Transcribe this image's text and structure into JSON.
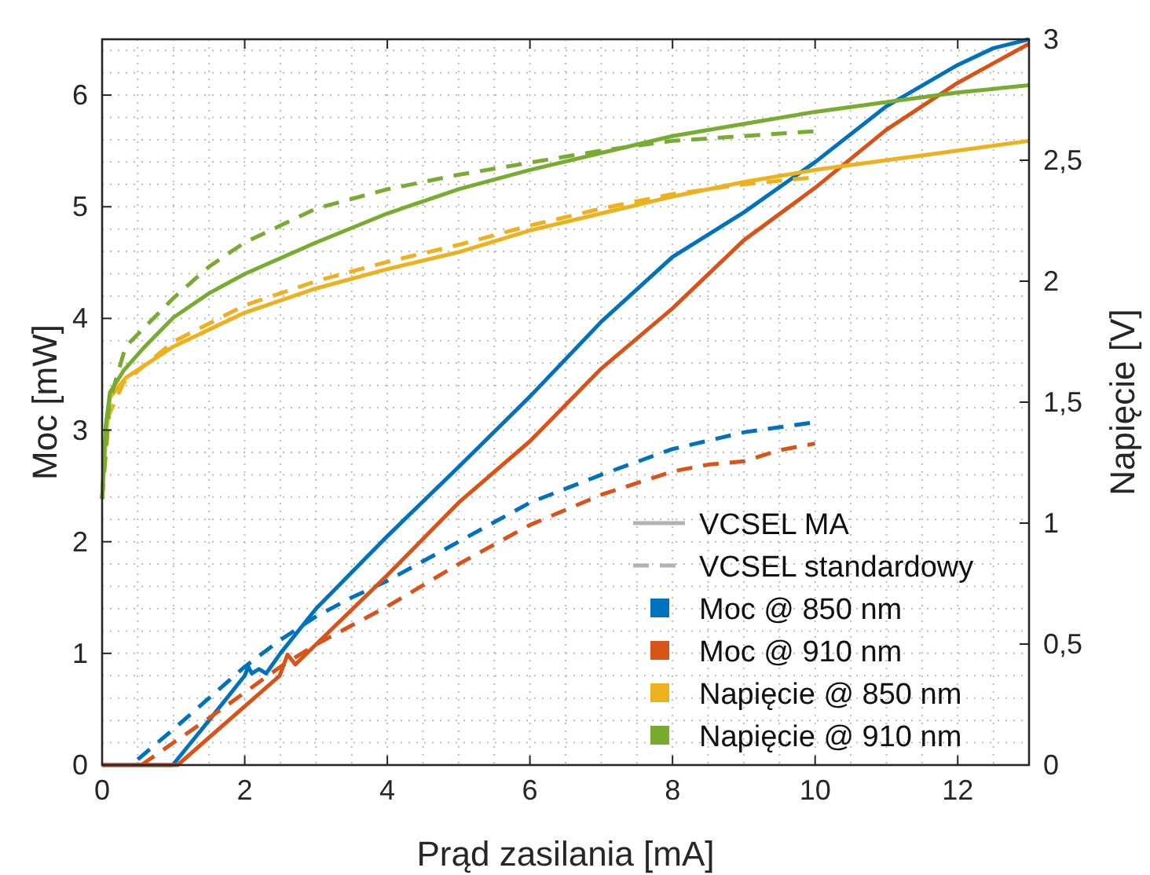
{
  "chart_data": {
    "type": "line",
    "xlabel": "Prąd zasilania [mA]",
    "ylabel": "Moc [mW]",
    "y2label": "Napięcie [V]",
    "xlim": [
      0,
      13
    ],
    "xticks": [
      0,
      2,
      4,
      6,
      8,
      10,
      12
    ],
    "ylim": [
      0,
      6.5
    ],
    "yticks": [
      0,
      1,
      2,
      3,
      4,
      5,
      6
    ],
    "y2lim": [
      0,
      3
    ],
    "y2ticks": [
      0,
      {
        "value": 0.5,
        "label": "0,5"
      },
      1,
      {
        "value": 1.5,
        "label": "1,5"
      },
      2,
      {
        "value": 2.5,
        "label": "2,5"
      },
      3
    ],
    "grid": true,
    "legend": "bottom right",
    "annotations": [
      "VCSEL MA",
      "VCSEL standardowy"
    ],
    "series": [
      {
        "name": "Moc @ 850 nm",
        "color": "#0072bd",
        "line_style": "solid",
        "x": [
          0,
          0.99,
          1.5,
          2.0,
          2.05,
          2.1,
          2.2,
          2.3,
          2.5,
          3,
          4,
          5,
          6,
          7,
          8,
          9,
          10,
          11,
          12,
          12.5,
          13
        ],
        "values": [
          0,
          0,
          0.4,
          0.8,
          0.88,
          0.82,
          0.86,
          0.82,
          1.0,
          1.4,
          2.05,
          2.67,
          3.3,
          3.97,
          4.55,
          4.95,
          5.4,
          5.9,
          6.27,
          6.42,
          6.5
        ]
      },
      {
        "color": "#0072bd",
        "line_style": "dashed",
        "x": [
          0.5,
          1,
          1.5,
          2,
          2.5,
          3,
          3.5,
          4,
          5,
          6,
          7,
          8,
          9,
          10
        ],
        "values": [
          0.05,
          0.32,
          0.6,
          0.88,
          1.12,
          1.33,
          1.5,
          1.65,
          2.0,
          2.35,
          2.6,
          2.83,
          2.98,
          3.07
        ]
      },
      {
        "name": "Moc @ 910 nm",
        "color": "#d95319",
        "line_style": "solid",
        "x": [
          0,
          1.06,
          2.49,
          2.6,
          2.71,
          4,
          5,
          6,
          7,
          8,
          9,
          10,
          11,
          12,
          13
        ],
        "values": [
          0,
          0,
          0.8,
          0.99,
          0.9,
          1.7,
          2.35,
          2.9,
          3.55,
          4.09,
          4.7,
          5.17,
          5.69,
          6.11,
          6.46
        ]
      },
      {
        "color": "#d95319",
        "line_style": "dashed",
        "x": [
          0.55,
          1,
          1.5,
          2,
          2.5,
          3,
          3.5,
          4,
          5,
          6,
          7,
          8,
          8.5,
          9,
          9.5,
          10
        ],
        "values": [
          0,
          0.2,
          0.42,
          0.65,
          0.88,
          1.08,
          1.25,
          1.42,
          1.8,
          2.15,
          2.42,
          2.63,
          2.69,
          2.72,
          2.82,
          2.88
        ]
      },
      {
        "name": "Napięcie @ 850 nm",
        "color": "#edb120",
        "line_style": "solid",
        "axis": "y2",
        "x": [
          0,
          0.05,
          0.11,
          0.33,
          1,
          2,
          3,
          4,
          5,
          6,
          7,
          8,
          9,
          10,
          11,
          12,
          13
        ],
        "values": [
          1.1,
          1.35,
          1.52,
          1.6,
          1.73,
          1.87,
          1.97,
          2.05,
          2.12,
          2.21,
          2.28,
          2.35,
          2.41,
          2.46,
          2.5,
          2.54,
          2.58
        ]
      },
      {
        "color": "#edb120",
        "line_style": "dashed",
        "axis": "y2",
        "x": [
          0,
          0.1,
          0.3,
          1,
          2,
          3,
          4,
          5,
          6,
          7,
          8,
          9,
          10
        ],
        "values": [
          1.1,
          1.45,
          1.58,
          1.75,
          1.9,
          2.0,
          2.08,
          2.15,
          2.23,
          2.3,
          2.36,
          2.4,
          2.43
        ]
      },
      {
        "name": "Napięcie @ 910 nm",
        "color": "#77ac30",
        "line_style": "solid",
        "axis": "y2",
        "x": [
          0,
          0.05,
          0.11,
          0.3,
          0.6,
          1,
          1.5,
          2,
          3,
          4,
          5,
          6,
          7,
          8,
          9,
          10,
          11,
          12,
          13
        ],
        "values": [
          1.1,
          1.4,
          1.54,
          1.63,
          1.73,
          1.85,
          1.95,
          2.03,
          2.16,
          2.28,
          2.38,
          2.46,
          2.53,
          2.6,
          2.65,
          2.7,
          2.74,
          2.78,
          2.81
        ]
      },
      {
        "color": "#77ac30",
        "line_style": "dashed",
        "axis": "y2",
        "x": [
          0,
          0.1,
          0.33,
          1,
          1.5,
          2,
          3,
          4,
          5,
          6,
          7,
          8,
          9,
          10
        ],
        "values": [
          1.1,
          1.5,
          1.73,
          1.93,
          2.06,
          2.16,
          2.3,
          2.38,
          2.44,
          2.49,
          2.54,
          2.58,
          2.6,
          2.62
        ]
      }
    ]
  }
}
